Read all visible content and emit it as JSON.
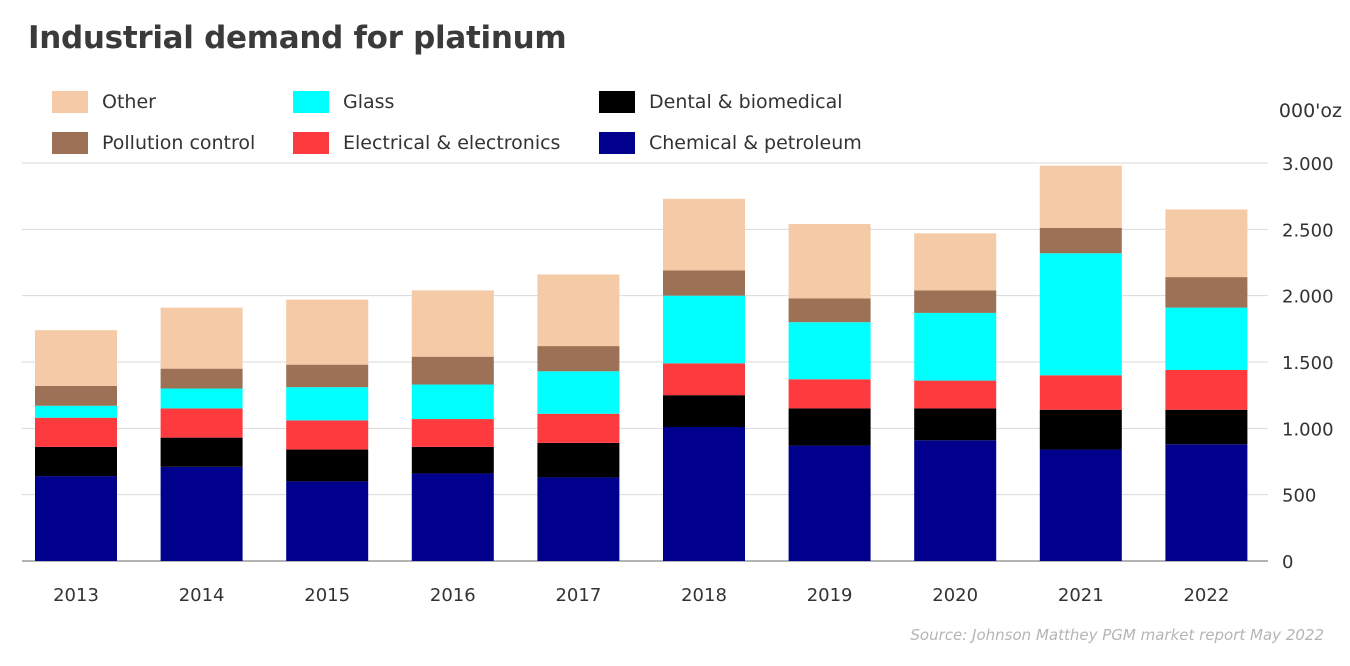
{
  "chart_data": {
    "type": "stacked-bar",
    "title": "Industrial demand for platinum",
    "unit_label": "000'oz",
    "source": "Source: Johnson Matthey PGM market report May 2022",
    "categories": [
      "2013",
      "2014",
      "2015",
      "2016",
      "2017",
      "2018",
      "2019",
      "2020",
      "2021",
      "2022"
    ],
    "ylim": [
      0,
      3000
    ],
    "yticks": [
      0,
      500,
      1000,
      1500,
      2000,
      2500,
      3000
    ],
    "ytick_labels": [
      "0",
      "500",
      "1.000",
      "1.500",
      "2.000",
      "2.500",
      "3.000"
    ],
    "grid": true,
    "series": [
      {
        "name": "Chemical & petroleum",
        "color": "#00008c",
        "values": [
          640,
          710,
          600,
          660,
          630,
          1010,
          870,
          910,
          840,
          880
        ]
      },
      {
        "name": "Dental & biomedical",
        "color": "#000000",
        "values": [
          220,
          220,
          240,
          200,
          260,
          240,
          280,
          240,
          300,
          260
        ]
      },
      {
        "name": "Electrical & electronics",
        "color": "#fd3b3f",
        "values": [
          220,
          220,
          220,
          210,
          220,
          240,
          220,
          210,
          260,
          300
        ]
      },
      {
        "name": "Glass",
        "color": "#00ffff",
        "values": [
          90,
          150,
          250,
          260,
          320,
          510,
          430,
          510,
          920,
          470
        ]
      },
      {
        "name": "Pollution control",
        "color": "#9c7155",
        "values": [
          150,
          150,
          170,
          210,
          190,
          190,
          180,
          170,
          190,
          230
        ]
      },
      {
        "name": "Other",
        "color": "#f5cba7",
        "values": [
          420,
          460,
          490,
          500,
          540,
          540,
          560,
          430,
          470,
          510
        ]
      }
    ],
    "legend_order": [
      "Other",
      "Pollution control",
      "Glass",
      "Electrical & electronics",
      "Dental & biomedical",
      "Chemical & petroleum"
    ]
  }
}
